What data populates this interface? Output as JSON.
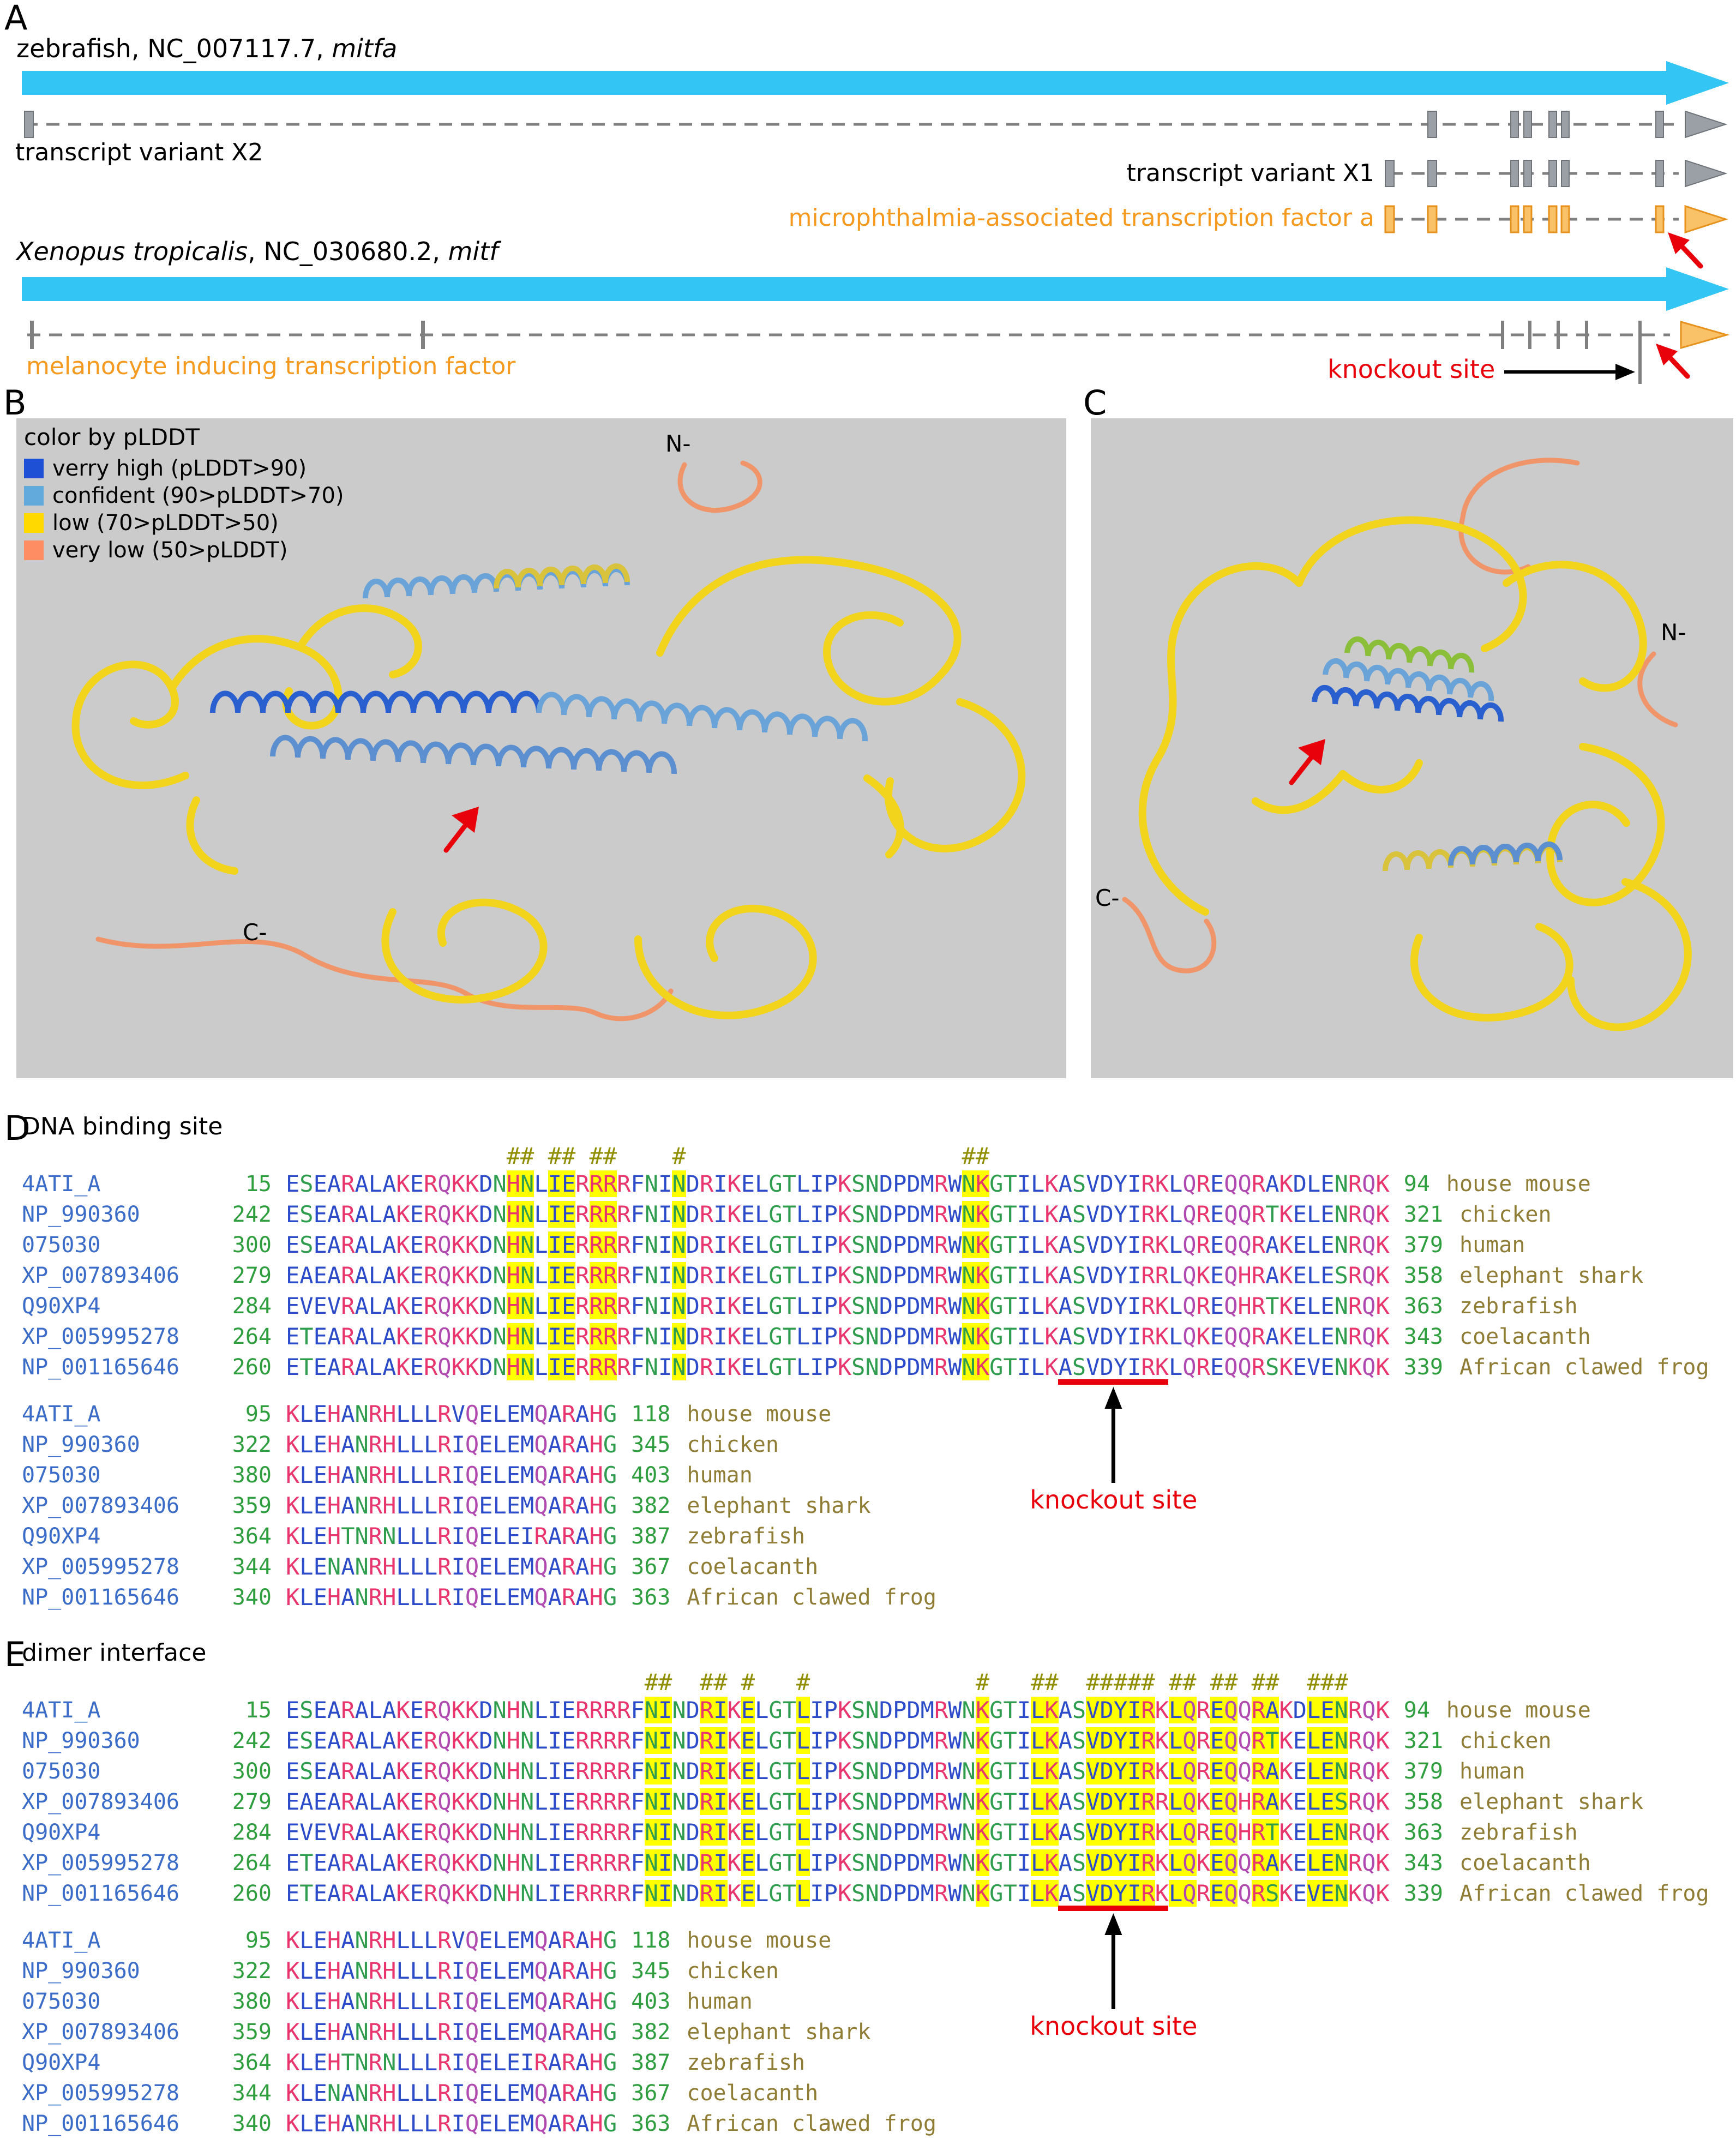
{
  "figure": {
    "panel_a": {
      "label": "A",
      "gene1_prefix": "zebrafish, NC_007117.7, ",
      "gene1_gene": "mitfa",
      "gene2_species": "Xenopus tropicalis",
      "gene2_mid": ", NC_030680.2, ",
      "gene2_gene": "mitf",
      "transcript_x2": "transcript variant X2",
      "transcript_x1": "transcript variant X1",
      "mitfa_product": "microphthalmia-associated transcription factor a",
      "mitf_product": "melanocyte inducing transcription factor",
      "knockout_label": "knockout site"
    },
    "panel_b": {
      "label": "B",
      "n_label": "N-",
      "c_label": "C-",
      "legend": {
        "title": "color by pLDDT",
        "items": [
          {
            "label": "verry high (pLDDT>90)",
            "color": "#1d50d4"
          },
          {
            "label": "confident (90>pLDDT>70)",
            "color": "#62aadc"
          },
          {
            "label": "low (70>pLDDT>50)",
            "color": "#ffd900"
          },
          {
            "label": "very low (50>pLDDT)",
            "color": "#ff8d63"
          }
        ]
      }
    },
    "panel_c": {
      "label": "C",
      "n_label": "N-",
      "c_label": "C-"
    },
    "panel_d": {
      "label": "D",
      "title": "DNA binding site",
      "knockout_label": "knockout site"
    },
    "panel_e": {
      "label": "E",
      "title": "dimer interface",
      "knockout_label": "knockout site"
    }
  },
  "colors": {
    "genome_cyan": "#33c6f4",
    "exon_gray": "#9aa0a6",
    "line_gray": "#808080",
    "orange_text": "#f59a1e",
    "exon_orange_fill": "#f9c268",
    "exon_orange_stroke": "#e8921e",
    "red": "#e8000b",
    "panel_bg": "#cbcbcb",
    "ribbon_yellow": "#f2d41c",
    "ribbon_salmon": "#f0956a",
    "helix_dark": "#2a5fd0",
    "helix_light": "#6aa3d8",
    "helix_steel": "#5b8fd0",
    "helix_yellow": "#d9c33c",
    "helix_green": "#8bbf3a"
  },
  "alignment": {
    "colors": {
      "accession": "#3b6cc7",
      "number": "#2f9e3f",
      "species": "#8f7d35",
      "hash": "#8f8f00",
      "highlight": "#ffff00",
      "residue_basic": "#e8356d",
      "residue_q": "#b04ab0",
      "residue_polar": "#2e9e4e",
      "residue_other": "#2b4bc8"
    },
    "block1": [
      {
        "acc": "4ATI_A",
        "start": "15",
        "seq": "ESEARALAKERQKKDNHNLIERRRRFNINDRIKELGTLIPKSNDPDMRWNKGTILKASVDYIRKLQREQQRAKDLENRQK",
        "end": "94",
        "species": "house mouse"
      },
      {
        "acc": "NP_990360",
        "start": "242",
        "seq": "ESEARALAKERQKKDNHNLIERRRRFNINDRIKELGTLIPKSNDPDMRWNKGTILKASVDYIRKLQREQQRTKELENRQK",
        "end": "321",
        "species": "chicken"
      },
      {
        "acc": "075030",
        "start": "300",
        "seq": "ESEARALAKERQKKDNHNLIERRRRFNINDRIKELGTLIPKSNDPDMRWNKGTILKASVDYIRKLQREQQRAKELENRQK",
        "end": "379",
        "species": "human"
      },
      {
        "acc": "XP_007893406",
        "start": "279",
        "seq": "EAEARALAKERQKKDNHNLIERRRRFNINDRIKELGTLIPKSNDPDMRWNKGTILKASVDYIRRLQKEQHRAKELESRQK",
        "end": "358",
        "species": "elephant shark"
      },
      {
        "acc": "Q90XP4",
        "start": "284",
        "seq": "EVEVRALAKERQKKDNHNLIERRRRFNINDRIKELGTLIPKSNDPDMRWNKGTILKASVDYIRKLQREQHRTKELENRQK",
        "end": "363",
        "species": "zebrafish"
      },
      {
        "acc": "XP_005995278",
        "start": "264",
        "seq": "ETEARALAKERQKKDNHNLIERRRRFNINDRIKELGTLIPKSNDPDMRWNKGTILKASVDYIRKLQKEQQRAKELENRQK",
        "end": "343",
        "species": "coelacanth"
      },
      {
        "acc": "NP_001165646",
        "start": "260",
        "seq": "ETEARALAKERQKKDNHNLIERRRRFNINDRIKELGTLIPKSNDPDMRWNKGTILKASVDYIRKLQREQQRSKEVENKQK",
        "end": "339",
        "species": "African clawed frog"
      }
    ],
    "block2": [
      {
        "acc": "4ATI_A",
        "start": "95",
        "seq": "KLEHANRHLLLRVQELEMQARAHG",
        "end": "118",
        "species": "house mouse"
      },
      {
        "acc": "NP_990360",
        "start": "322",
        "seq": "KLEHANRHLLLRIQELEMQARAHG",
        "end": "345",
        "species": "chicken"
      },
      {
        "acc": "075030",
        "start": "380",
        "seq": "KLEHANRHLLLRIQELEMQARAHG",
        "end": "403",
        "species": "human"
      },
      {
        "acc": "XP_007893406",
        "start": "359",
        "seq": "KLEHANRHLLLRIQELEMQARAHG",
        "end": "382",
        "species": "elephant shark"
      },
      {
        "acc": "Q90XP4",
        "start": "364",
        "seq": "KLEHTNRNLLLRIQELEIRARAHG",
        "end": "387",
        "species": "zebrafish"
      },
      {
        "acc": "XP_005995278",
        "start": "344",
        "seq": "KLENANRHLLLRIQELEMQARAHG",
        "end": "367",
        "species": "coelacanth"
      },
      {
        "acc": "NP_001165646",
        "start": "340",
        "seq": "KLEHANRHLLLRIQELEMQARAHG",
        "end": "363",
        "species": "African clawed frog"
      }
    ],
    "panel_d": {
      "marked_cols": [
        16,
        17,
        19,
        20,
        22,
        23,
        28,
        49,
        50
      ],
      "underline_row": 6,
      "underline_col_start": 56,
      "underline_col_end": 63
    },
    "panel_e": {
      "marked_cols": [
        26,
        27,
        30,
        31,
        33,
        37,
        50,
        54,
        55,
        58,
        59,
        60,
        61,
        62,
        64,
        65,
        67,
        68,
        70,
        71,
        74,
        75,
        76
      ],
      "underline_row": 6,
      "underline_col_start": 56,
      "underline_col_end": 63
    }
  }
}
